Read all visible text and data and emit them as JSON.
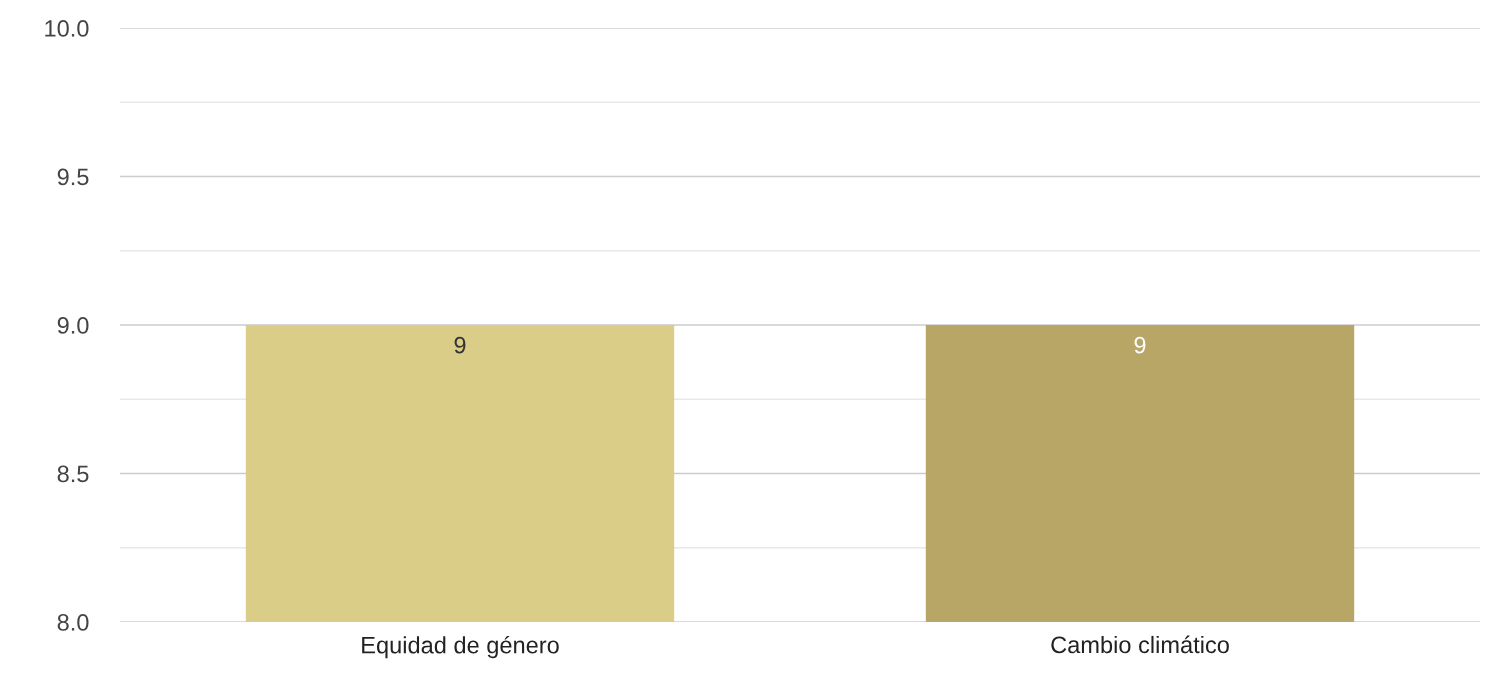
{
  "chart_data": {
    "type": "bar",
    "categories": [
      "Equidad de género",
      "Cambio climático"
    ],
    "values": [
      9,
      9
    ],
    "colors": [
      "#d9cd87",
      "#b8a666"
    ],
    "ylim": [
      8,
      10
    ],
    "yticks": [
      {
        "value": 8,
        "label": "8.0"
      },
      {
        "value": 8.25,
        "label": null
      },
      {
        "value": 8.5,
        "label": "8.5"
      },
      {
        "value": 8.75,
        "label": null
      },
      {
        "value": 9,
        "label": "9.0"
      },
      {
        "value": 9.25,
        "label": null
      },
      {
        "value": 9.5,
        "label": "9.5"
      },
      {
        "value": 9.75,
        "label": null
      },
      {
        "value": 10,
        "label": "10.0"
      }
    ],
    "grid": "y",
    "data_labels": true,
    "legend": false
  }
}
